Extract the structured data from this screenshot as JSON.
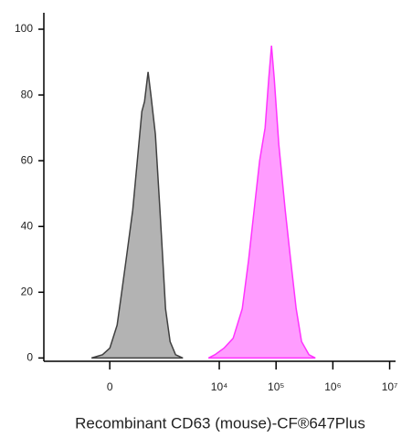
{
  "chart_data": {
    "type": "area",
    "xscale": "biexponential",
    "xlabel": "Recombinant CD63 (mouse)-CF®647Plus",
    "xlim": [
      -1700,
      12700000
    ],
    "xticks": [
      0,
      {
        "value": 10000,
        "label": "10⁴"
      },
      {
        "value": 100000,
        "label": "10⁵"
      },
      {
        "value": 1000000,
        "label": "10⁶"
      },
      {
        "value": 10000000,
        "label": "10⁷"
      }
    ],
    "ylim": [
      -1,
      105
    ],
    "yticks": [
      0,
      20,
      40,
      60,
      80,
      100
    ],
    "series": [
      {
        "color": "#b3b3b3",
        "line_color": "#404040",
        "x": [
          -191,
          -71,
          0,
          71,
          118,
          169,
          253,
          321,
          401,
          454,
          533,
          604,
          733,
          889,
          998,
          1119,
          1353,
          1690,
          2280
        ],
        "values": [
          0,
          1,
          3,
          10,
          20,
          30,
          45,
          60,
          75,
          78,
          87,
          80,
          68,
          45,
          30,
          15,
          5,
          1,
          0
        ]
      },
      {
        "color": "#ff9cff",
        "line_color": "#ff33ff",
        "x": [
          6440,
          8350,
          12090,
          17510,
          25360,
          32890,
          41070,
          51270,
          64020,
          74230,
          82960,
          92750,
          111600,
          144700,
          180500,
          225500,
          281500,
          378800,
          490900
        ],
        "values": [
          0,
          1,
          3,
          6,
          15,
          30,
          45,
          60,
          70,
          85,
          95,
          85,
          65,
          45,
          30,
          15,
          5,
          1,
          0
        ]
      }
    ]
  }
}
